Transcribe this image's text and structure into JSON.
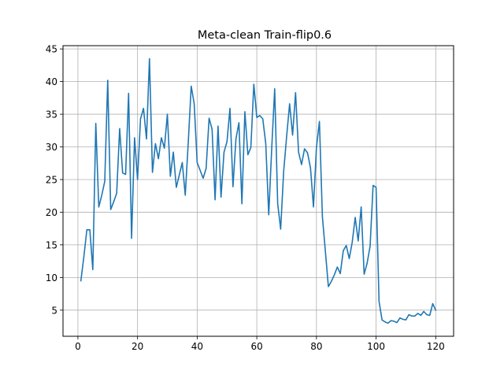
{
  "chart_data": {
    "type": "line",
    "title": "Meta-clean Train-flip0.6",
    "xlabel": "",
    "ylabel": "",
    "xlim": [
      -5,
      126
    ],
    "ylim": [
      1.0,
      45.5
    ],
    "grid": true,
    "legend": "none",
    "line_color": "#1f77b4",
    "x_ticks": [
      0,
      20,
      40,
      60,
      80,
      100,
      120
    ],
    "y_ticks": [
      5,
      10,
      15,
      20,
      25,
      30,
      35,
      40,
      45
    ],
    "series": [
      {
        "x": [
          1,
          2,
          3,
          4,
          5,
          6,
          7,
          8,
          9,
          10,
          11,
          12,
          13,
          14,
          15,
          16,
          17,
          18,
          19,
          20,
          21,
          22,
          23,
          24,
          25,
          26,
          27,
          28,
          29,
          30,
          31,
          32,
          33,
          34,
          35,
          36,
          37,
          38,
          39,
          40,
          41,
          42,
          43,
          44,
          45,
          46,
          47,
          48,
          49,
          50,
          51,
          52,
          53,
          54,
          55,
          56,
          57,
          58,
          59,
          60,
          61,
          62,
          63,
          64,
          65,
          66,
          67,
          68,
          69,
          70,
          71,
          72,
          73,
          74,
          75,
          76,
          77,
          78,
          79,
          80,
          81,
          82,
          83,
          84,
          85,
          86,
          87,
          88,
          89,
          90,
          91,
          92,
          93,
          94,
          95,
          96,
          97,
          98,
          99,
          100,
          101,
          102,
          103,
          104,
          105,
          106,
          107,
          108,
          109,
          110,
          111,
          112,
          113,
          114,
          115,
          116,
          117,
          118,
          119,
          120
        ],
        "values": [
          9.5,
          13.2,
          17.3,
          17.3,
          11.2,
          33.6,
          20.8,
          22.6,
          24.7,
          40.2,
          20.4,
          21.6,
          22.9,
          32.8,
          26.0,
          25.8,
          38.2,
          16.0,
          31.4,
          25.0,
          34.3,
          35.9,
          31.2,
          43.5,
          26.1,
          30.5,
          28.2,
          31.4,
          29.8,
          35.0,
          25.5,
          29.2,
          23.8,
          25.7,
          27.6,
          22.6,
          30.6,
          39.3,
          36.6,
          27.6,
          26.4,
          25.2,
          26.7,
          34.4,
          32.7,
          21.9,
          33.2,
          22.3,
          29.2,
          30.8,
          35.9,
          23.9,
          31.2,
          33.7,
          21.3,
          35.4,
          28.8,
          29.9,
          39.6,
          34.5,
          34.8,
          34.3,
          30.5,
          19.6,
          29.8,
          38.9,
          21.3,
          17.4,
          26.2,
          31.6,
          36.6,
          31.8,
          38.3,
          29.2,
          27.3,
          29.7,
          29.1,
          26.8,
          20.8,
          29.9,
          33.9,
          19.3,
          14.0,
          8.6,
          9.4,
          10.4,
          11.6,
          10.6,
          14.1,
          14.9,
          12.9,
          15.4,
          19.2,
          15.6,
          20.8,
          10.5,
          12.2,
          14.8,
          24.1,
          23.8,
          6.3,
          3.5,
          3.2,
          3.0,
          3.4,
          3.3,
          3.1,
          3.8,
          3.6,
          3.5,
          4.3,
          4.1,
          4.1,
          4.5,
          4.2,
          4.8,
          4.3,
          4.2,
          6.0,
          5.0
        ]
      }
    ]
  }
}
